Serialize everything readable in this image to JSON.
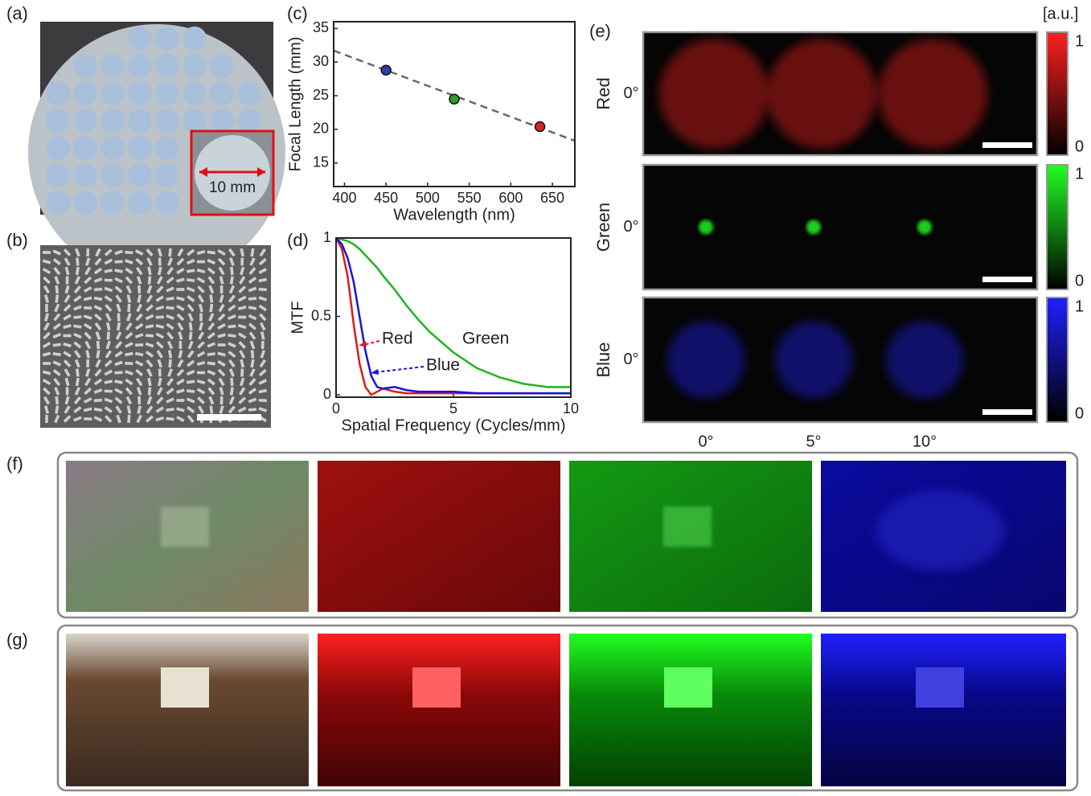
{
  "panels": {
    "a": "(a)",
    "b": "(b)",
    "c": "(c)",
    "d": "(d)",
    "e": "(e)",
    "f": "(f)",
    "g": "(g)"
  },
  "panel_a": {
    "scale_label": "10 mm"
  },
  "chart_data": [
    {
      "type": "scatter",
      "xlabel": "Wavelength (nm)",
      "ylabel": "Focal Length (mm)",
      "x": [
        450,
        532,
        635
      ],
      "values": [
        28.8,
        24.5,
        20.4
      ],
      "colors": [
        "#2b3fb0",
        "#2ca02c",
        "#d62728"
      ],
      "line": {
        "x": [
          387,
          677
        ],
        "values": [
          31.7,
          18.3
        ],
        "color": "#666666",
        "dashed": true
      },
      "xlim": [
        387,
        677
      ],
      "ylim": [
        11.5,
        36
      ],
      "xticks": [
        400,
        450,
        500,
        550,
        600,
        650
      ],
      "yticks": [
        15,
        20,
        25,
        30,
        35
      ]
    },
    {
      "type": "line",
      "xlabel": "Spatial Frequency (Cycles/mm)",
      "ylabel": "MTF",
      "x": [
        0,
        0.25,
        0.5,
        0.75,
        1,
        1.25,
        1.5,
        1.75,
        2,
        2.5,
        3,
        3.5,
        4,
        5,
        6,
        7,
        8,
        9,
        10
      ],
      "series": [
        {
          "name": "Red",
          "color": "#e01818",
          "values": [
            1,
            0.93,
            0.75,
            0.45,
            0.2,
            0.05,
            0.0,
            0.02,
            0.04,
            0.02,
            0.01,
            0.01,
            0.01,
            0.01,
            0.01,
            0.01,
            0.01,
            0.01,
            0.01
          ]
        },
        {
          "name": "Green",
          "color": "#1db41d",
          "values": [
            1,
            0.99,
            0.98,
            0.96,
            0.93,
            0.89,
            0.85,
            0.81,
            0.76,
            0.67,
            0.57,
            0.48,
            0.4,
            0.27,
            0.17,
            0.11,
            0.07,
            0.05,
            0.05
          ]
        },
        {
          "name": "Blue",
          "color": "#1414e0",
          "values": [
            1,
            0.96,
            0.87,
            0.72,
            0.5,
            0.28,
            0.12,
            0.05,
            0.04,
            0.05,
            0.03,
            0.02,
            0.02,
            0.02,
            0.01,
            0.01,
            0.01,
            0.01,
            0.01
          ]
        }
      ],
      "xlim": [
        0,
        10
      ],
      "ylim": [
        -0.015,
        1
      ],
      "xticks": [
        0,
        5,
        10
      ],
      "yticks": [
        0,
        0.5,
        1
      ]
    }
  ],
  "panel_e": {
    "unit": "[a.u.]",
    "columns": [
      "0°",
      "5°",
      "10°"
    ],
    "rows": [
      {
        "name": "Red",
        "angle": "0°",
        "color": "#ff2020",
        "cbar_max": 1,
        "cbar_min": 0
      },
      {
        "name": "Green",
        "angle": "0°",
        "color": "#20ff20",
        "cbar_max": 1,
        "cbar_min": 0
      },
      {
        "name": "Blue",
        "angle": "0°",
        "color": "#2020ff",
        "cbar_max": 1,
        "cbar_min": 0
      }
    ]
  }
}
